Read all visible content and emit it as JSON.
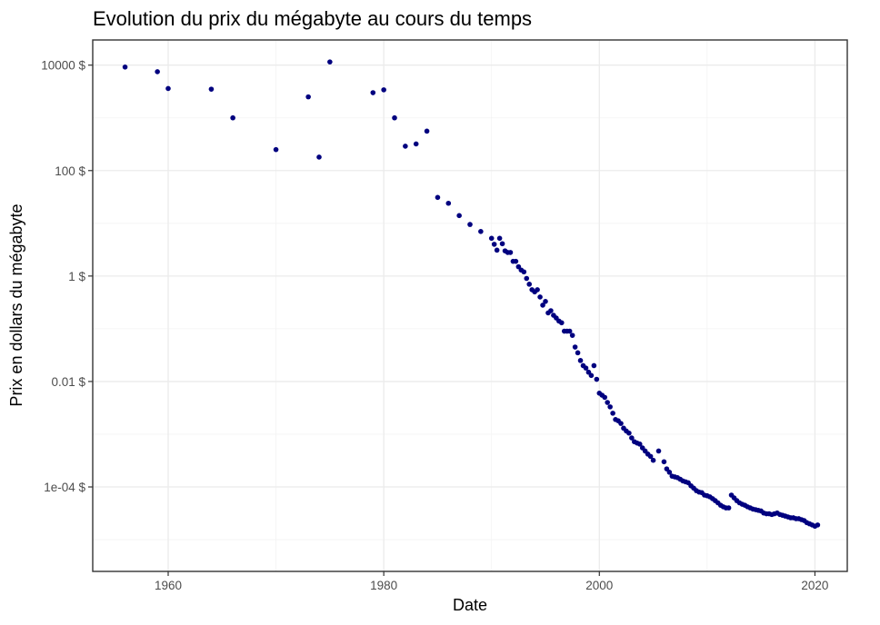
{
  "chart_data": {
    "type": "scatter",
    "title": "Evolution du prix du mégabyte au cours du temps",
    "xlabel": "Date",
    "ylabel": "Prix en dollars du mégabyte",
    "x_scale": "linear",
    "y_scale": "log10",
    "xlim": [
      1953,
      2023
    ],
    "ylim": [
      2.5e-06,
      30000
    ],
    "x_ticks": [
      1960,
      1980,
      2000,
      2020
    ],
    "x_tick_labels": [
      "1960",
      "1980",
      "2000",
      "2020"
    ],
    "y_ticks": [
      0.0001,
      0.01,
      1,
      100,
      10000
    ],
    "y_tick_labels": [
      "1e-04 $",
      "0.01 $",
      "1 $",
      "100 $",
      "10000 $"
    ],
    "grid": true,
    "legend": "none",
    "point_color": "#00007f",
    "points": [
      [
        1956,
        9200
      ],
      [
        1959,
        7500
      ],
      [
        1960,
        3600
      ],
      [
        1964,
        3500
      ],
      [
        1966,
        1000
      ],
      [
        1970,
        250
      ],
      [
        1973,
        2500
      ],
      [
        1974,
        180
      ],
      [
        1975,
        11500
      ],
      [
        1979,
        3000
      ],
      [
        1980,
        3400
      ],
      [
        1981,
        1000
      ],
      [
        1982,
        290
      ],
      [
        1983,
        320
      ],
      [
        1984,
        560
      ],
      [
        1985,
        31
      ],
      [
        1986,
        24
      ],
      [
        1987,
        14
      ],
      [
        1988,
        9.5
      ],
      [
        1989,
        7
      ],
      [
        1990,
        5.2
      ],
      [
        1990.25,
        4
      ],
      [
        1990.5,
        3.1
      ],
      [
        1990.75,
        5.2
      ],
      [
        1991,
        4.1
      ],
      [
        1991.25,
        3
      ],
      [
        1991.5,
        2.8
      ],
      [
        1991.75,
        2.8
      ],
      [
        1992,
        1.9
      ],
      [
        1992.25,
        1.9
      ],
      [
        1992.5,
        1.5
      ],
      [
        1992.75,
        1.3
      ],
      [
        1993,
        1.2
      ],
      [
        1993.25,
        0.9
      ],
      [
        1993.5,
        0.7
      ],
      [
        1993.75,
        0.55
      ],
      [
        1994,
        0.5
      ],
      [
        1994.25,
        0.55
      ],
      [
        1994.5,
        0.4
      ],
      [
        1994.75,
        0.28
      ],
      [
        1995,
        0.33
      ],
      [
        1995.25,
        0.2
      ],
      [
        1995.5,
        0.22
      ],
      [
        1995.75,
        0.18
      ],
      [
        1996,
        0.16
      ],
      [
        1996.25,
        0.14
      ],
      [
        1996.5,
        0.13
      ],
      [
        1996.75,
        0.09
      ],
      [
        1997,
        0.09
      ],
      [
        1997.25,
        0.09
      ],
      [
        1997.5,
        0.075
      ],
      [
        1997.75,
        0.045
      ],
      [
        1998,
        0.035
      ],
      [
        1998.25,
        0.025
      ],
      [
        1998.5,
        0.02
      ],
      [
        1998.75,
        0.018
      ],
      [
        1999,
        0.015
      ],
      [
        1999.25,
        0.013
      ],
      [
        1999.5,
        0.02
      ],
      [
        1999.75,
        0.011
      ],
      [
        2000,
        0.006
      ],
      [
        2000.25,
        0.0055
      ],
      [
        2000.5,
        0.005
      ],
      [
        2000.75,
        0.004
      ],
      [
        2001,
        0.0033
      ],
      [
        2001.25,
        0.0025
      ],
      [
        2001.5,
        0.0019
      ],
      [
        2001.75,
        0.0018
      ],
      [
        2002,
        0.0016
      ],
      [
        2002.25,
        0.0013
      ],
      [
        2002.5,
        0.00115
      ],
      [
        2002.75,
        0.00105
      ],
      [
        2003,
        0.00085
      ],
      [
        2003.25,
        0.00072
      ],
      [
        2003.5,
        0.00068
      ],
      [
        2003.75,
        0.00065
      ],
      [
        2004,
        0.00055
      ],
      [
        2004.25,
        0.00048
      ],
      [
        2004.5,
        0.00042
      ],
      [
        2004.75,
        0.00038
      ],
      [
        2005,
        0.00032
      ],
      [
        2005.5,
        0.00048
      ],
      [
        2006,
        0.0003
      ],
      [
        2006.25,
        0.00022
      ],
      [
        2006.5,
        0.00019
      ],
      [
        2006.75,
        0.00016
      ],
      [
        2007,
        0.000155
      ],
      [
        2007.25,
        0.00015
      ],
      [
        2007.5,
        0.00014
      ],
      [
        2007.75,
        0.00013
      ],
      [
        2008,
        0.000125
      ],
      [
        2008.25,
        0.00012
      ],
      [
        2008.5,
        0.000105
      ],
      [
        2008.75,
        9.5e-05
      ],
      [
        2009,
        8.5e-05
      ],
      [
        2009.25,
        8e-05
      ],
      [
        2009.5,
        7.8e-05
      ],
      [
        2009.75,
        7e-05
      ],
      [
        2010,
        6.8e-05
      ],
      [
        2010.25,
        6.5e-05
      ],
      [
        2010.5,
        6e-05
      ],
      [
        2010.75,
        5.5e-05
      ],
      [
        2011,
        5e-05
      ],
      [
        2011.25,
        4.5e-05
      ],
      [
        2011.5,
        4.2e-05
      ],
      [
        2011.75,
        4e-05
      ],
      [
        2012,
        4e-05
      ],
      [
        2012.25,
        7e-05
      ],
      [
        2012.5,
        6.2e-05
      ],
      [
        2012.75,
        5.5e-05
      ],
      [
        2013,
        5e-05
      ],
      [
        2013.25,
        4.7e-05
      ],
      [
        2013.5,
        4.5e-05
      ],
      [
        2013.75,
        4.2e-05
      ],
      [
        2014,
        4e-05
      ],
      [
        2014.25,
        3.8e-05
      ],
      [
        2014.5,
        3.7e-05
      ],
      [
        2014.75,
        3.6e-05
      ],
      [
        2015,
        3.5e-05
      ],
      [
        2015.25,
        3.2e-05
      ],
      [
        2015.5,
        3.1e-05
      ],
      [
        2015.75,
        3.1e-05
      ],
      [
        2016,
        3e-05
      ],
      [
        2016.25,
        3.1e-05
      ],
      [
        2016.5,
        3.2e-05
      ],
      [
        2016.75,
        3e-05
      ],
      [
        2017,
        2.9e-05
      ],
      [
        2017.25,
        2.8e-05
      ],
      [
        2017.5,
        2.7e-05
      ],
      [
        2017.75,
        2.6e-05
      ],
      [
        2018,
        2.6e-05
      ],
      [
        2018.25,
        2.5e-05
      ],
      [
        2018.5,
        2.5e-05
      ],
      [
        2018.75,
        2.4e-05
      ],
      [
        2019,
        2.3e-05
      ],
      [
        2019.25,
        2.1e-05
      ],
      [
        2019.5,
        2e-05
      ],
      [
        2019.75,
        1.9e-05
      ],
      [
        2020,
        1.8e-05
      ],
      [
        2020.25,
        1.9e-05
      ]
    ]
  }
}
